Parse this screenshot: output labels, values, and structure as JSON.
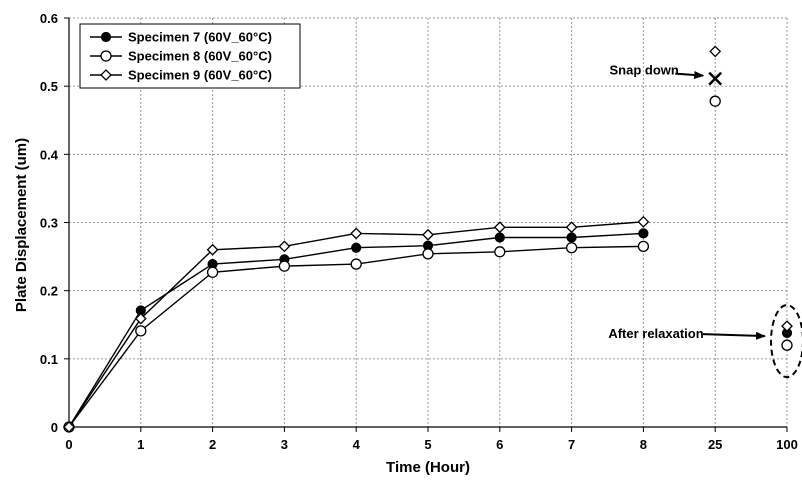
{
  "chart_data": {
    "type": "line",
    "xlabel": "Time (Hour)",
    "ylabel": "Plate Displacement (um)",
    "x_categories": [
      "0",
      "1",
      "2",
      "3",
      "4",
      "5",
      "6",
      "7",
      "8",
      "25",
      "100"
    ],
    "yticks": [
      "0",
      "0.1",
      "0.2",
      "0.3",
      "0.4",
      "0.5",
      "0.6"
    ],
    "ylim": [
      0,
      0.6
    ],
    "grid": true,
    "legend_position": "top-left",
    "series": [
      {
        "name": "Specimen 7 (60V_60°C)",
        "marker": "filled-circle",
        "x": [
          "0",
          "1",
          "2",
          "3",
          "4",
          "5",
          "6",
          "7",
          "8",
          "100"
        ],
        "values": [
          0,
          0.171,
          0.239,
          0.246,
          0.263,
          0.266,
          0.278,
          0.278,
          0.284,
          0.138
        ]
      },
      {
        "name": "Specimen 8 (60V_60°C)",
        "marker": "open-circle",
        "x": [
          "0",
          "1",
          "2",
          "3",
          "4",
          "5",
          "6",
          "7",
          "8",
          "25",
          "100"
        ],
        "values": [
          0,
          0.141,
          0.227,
          0.236,
          0.239,
          0.254,
          0.257,
          0.263,
          0.265,
          0.478,
          0.12
        ]
      },
      {
        "name": "Specimen 9 (60V_60°C)",
        "marker": "open-diamond",
        "x": [
          "0",
          "1",
          "2",
          "3",
          "4",
          "5",
          "6",
          "7",
          "8",
          "25",
          "100"
        ],
        "values": [
          0,
          0.159,
          0.26,
          0.265,
          0.284,
          0.282,
          0.293,
          0.293,
          0.301,
          0.551,
          0.148
        ]
      }
    ],
    "snap_marker": {
      "x": "25",
      "value": 0.511
    },
    "annotations": [
      {
        "text": "Snap down",
        "x": "25",
        "value": 0.511
      },
      {
        "text": "After relaxation",
        "x": "100",
        "value": 0.126
      }
    ]
  }
}
